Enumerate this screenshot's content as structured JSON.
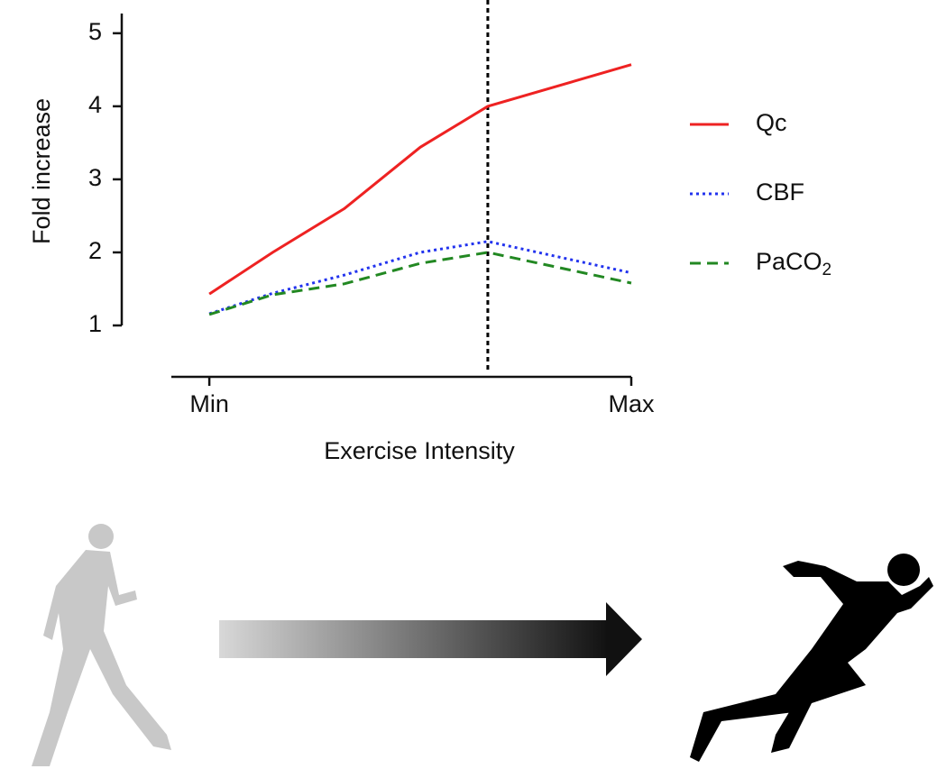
{
  "chart_data": {
    "type": "line",
    "ylabel": "Fold increase",
    "xlabel": "Exercise Intensity",
    "x": [
      0,
      0.15,
      0.32,
      0.5,
      0.66,
      1
    ],
    "xlim": [
      -0.09,
      1
    ],
    "xticks": [
      {
        "value": 0,
        "label": "Min"
      },
      {
        "value": 1,
        "label": "Max"
      }
    ],
    "ylim": [
      1,
      5.27
    ],
    "yticks": [
      1,
      2,
      3,
      4,
      5
    ],
    "vline": 0.66,
    "series": [
      {
        "name": "Qc",
        "color": "#ee2222",
        "dash": "solid",
        "values": [
          1.43,
          2.0,
          2.6,
          3.44,
          4.0,
          4.57
        ]
      },
      {
        "name": "CBF",
        "color": "#2233ee",
        "dash": "dotted",
        "values": [
          1.16,
          1.44,
          1.69,
          2.0,
          2.15,
          1.72
        ]
      },
      {
        "name": "PaCO2",
        "color": "#228822",
        "dash": "dashed",
        "values": [
          1.15,
          1.42,
          1.57,
          1.85,
          2.0,
          1.58
        ]
      }
    ]
  }
}
